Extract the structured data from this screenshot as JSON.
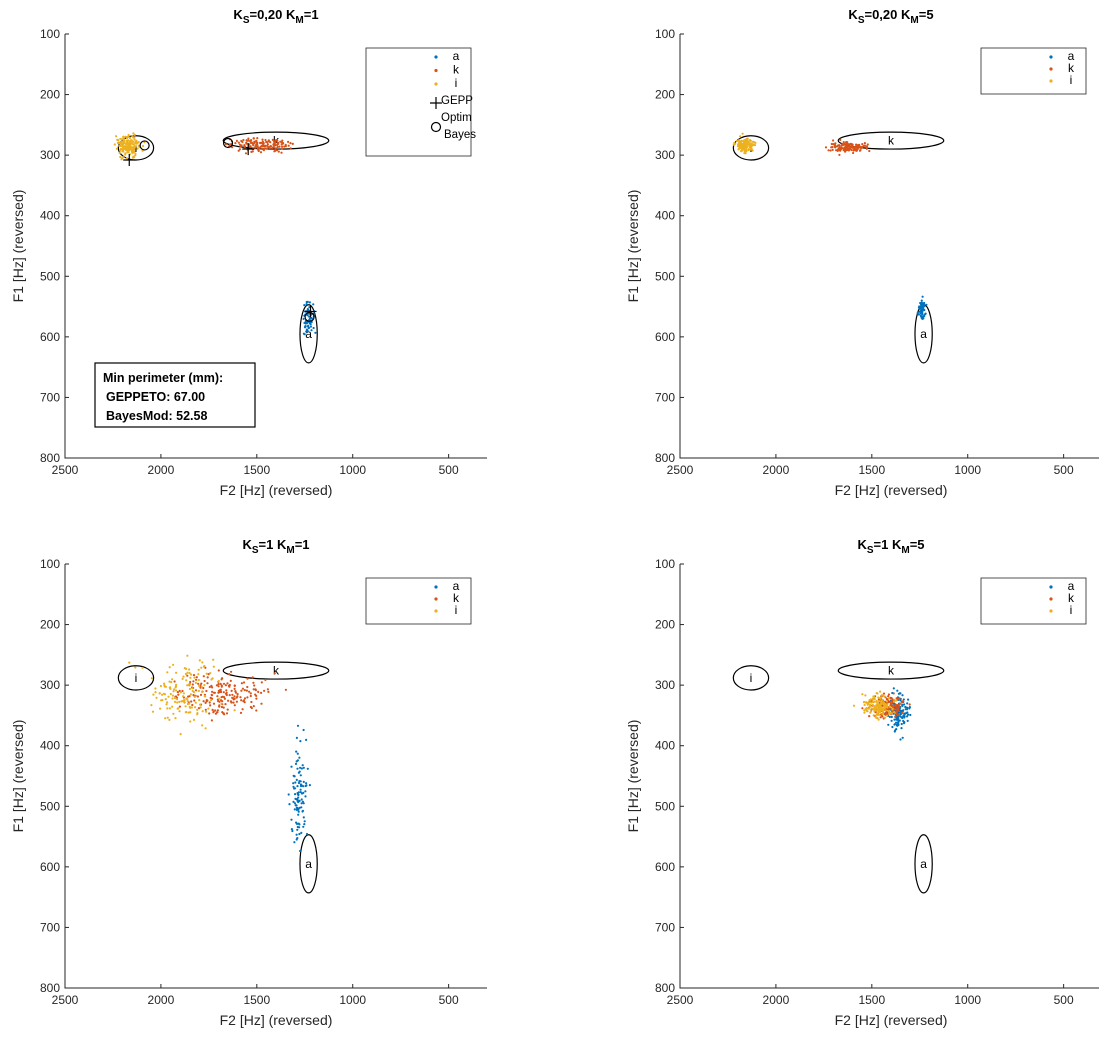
{
  "figure": {
    "colors": {
      "a": "#0072BD",
      "k": "#D95319",
      "i": "#EDB120",
      "axis": "#262626",
      "ellipse": "#000000"
    }
  },
  "chart_data": [
    {
      "type": "scatter",
      "title_parts": [
        "K",
        "S",
        "=0,20  K",
        "M",
        "=1"
      ],
      "xlabel": "F2 [Hz] (reversed)",
      "ylabel": "F1 [Hz] (reversed)",
      "xlim": [
        2500,
        300
      ],
      "ylim": [
        100,
        800
      ],
      "x_reversed": true,
      "y_reversed": true,
      "xticks": [
        2500,
        2000,
        1500,
        1000,
        500
      ],
      "yticks": [
        100,
        200,
        300,
        400,
        500,
        600,
        700,
        800
      ],
      "grid": false,
      "legend": {
        "position": "top-right",
        "entries": [
          "a",
          "k",
          "i",
          "GEPP",
          "Optim",
          "Bayes"
        ]
      },
      "targets": [
        {
          "label": "a",
          "f2": 1230,
          "f1": 595,
          "rx": 45,
          "ry": 48
        },
        {
          "label": "k",
          "f2": 1400,
          "f1": 276,
          "rx": 275,
          "ry": 14
        },
        {
          "label": "i",
          "f2": 2130,
          "f1": 288,
          "rx": 92,
          "ry": 20
        }
      ],
      "series": [
        {
          "name": "a",
          "center": [
            1228,
            570
          ],
          "spread": [
            15,
            12
          ],
          "n": 70
        },
        {
          "name": "k",
          "center": [
            1480,
            283
          ],
          "spread": [
            80,
            5
          ],
          "n": 150
        },
        {
          "name": "i",
          "center": [
            2170,
            285
          ],
          "spread": [
            30,
            8
          ],
          "n": 180
        }
      ],
      "gepp_points": [
        [
          2165,
          308
        ],
        [
          1545,
          290
        ],
        [
          1220,
          558
        ]
      ],
      "optim_bayes_points": [
        [
          2085,
          284
        ],
        [
          1650,
          280
        ],
        [
          1225,
          567
        ]
      ],
      "annotation": [
        "Min perimeter (mm):",
        "GEPPETO: 67.00",
        "BayesMod: 52.58"
      ]
    },
    {
      "type": "scatter",
      "title_parts": [
        "K",
        "S",
        "=0,20  K",
        "M",
        "=5"
      ],
      "xlabel": "F2 [Hz] (reversed)",
      "ylabel": "F1 [Hz] (reversed)",
      "xlim": [
        2500,
        300
      ],
      "ylim": [
        100,
        800
      ],
      "x_reversed": true,
      "y_reversed": true,
      "xticks": [
        2500,
        2000,
        1500,
        1000,
        500
      ],
      "yticks": [
        100,
        200,
        300,
        400,
        500,
        600,
        700,
        800
      ],
      "grid": false,
      "legend": {
        "position": "top-right",
        "entries": [
          "a",
          "k",
          "i"
        ]
      },
      "targets": [
        {
          "label": "a",
          "f2": 1230,
          "f1": 595,
          "rx": 45,
          "ry": 48
        },
        {
          "label": "k",
          "f2": 1400,
          "f1": 276,
          "rx": 275,
          "ry": 14
        },
        {
          "label": "i",
          "f2": 2130,
          "f1": 288,
          "rx": 92,
          "ry": 20
        }
      ],
      "series": [
        {
          "name": "a",
          "center": [
            1240,
            553
          ],
          "spread": [
            8,
            8
          ],
          "n": 60
        },
        {
          "name": "k",
          "center": [
            1620,
            287
          ],
          "spread": [
            45,
            4
          ],
          "n": 140
        },
        {
          "name": "i",
          "center": [
            2165,
            283
          ],
          "spread": [
            25,
            6
          ],
          "n": 160
        }
      ]
    },
    {
      "type": "scatter",
      "title_parts": [
        "K",
        "S",
        "=1  K",
        "M",
        "=1"
      ],
      "xlabel": "F2 [Hz] (reversed)",
      "ylabel": "F1 [Hz] (reversed)",
      "xlim": [
        2500,
        300
      ],
      "ylim": [
        100,
        800
      ],
      "x_reversed": true,
      "y_reversed": true,
      "xticks": [
        2500,
        2000,
        1500,
        1000,
        500
      ],
      "yticks": [
        100,
        200,
        300,
        400,
        500,
        600,
        700,
        800
      ],
      "grid": false,
      "legend": {
        "position": "top-right",
        "entries": [
          "a",
          "k",
          "i"
        ]
      },
      "targets": [
        {
          "label": "a",
          "f2": 1230,
          "f1": 595,
          "rx": 45,
          "ry": 48
        },
        {
          "label": "k",
          "f2": 1400,
          "f1": 276,
          "rx": 275,
          "ry": 14
        },
        {
          "label": "i",
          "f2": 2130,
          "f1": 288,
          "rx": 92,
          "ry": 20
        }
      ],
      "series": [
        {
          "name": "a",
          "center": [
            1280,
            480
          ],
          "spread": [
            20,
            40
          ],
          "n": 110
        },
        {
          "name": "k",
          "center": [
            1680,
            315
          ],
          "spread": [
            120,
            18
          ],
          "n": 200
        },
        {
          "name": "i",
          "center": [
            1880,
            315
          ],
          "spread": [
            90,
            25
          ],
          "n": 150
        }
      ]
    },
    {
      "type": "scatter",
      "title_parts": [
        "K",
        "S",
        "=1  K",
        "M",
        "=5"
      ],
      "xlabel": "F2 [Hz] (reversed)",
      "ylabel": "F1 [Hz] (reversed)",
      "xlim": [
        2500,
        300
      ],
      "ylim": [
        100,
        800
      ],
      "x_reversed": true,
      "y_reversed": true,
      "xticks": [
        2500,
        2000,
        1500,
        1000,
        500
      ],
      "yticks": [
        100,
        200,
        300,
        400,
        500,
        600,
        700,
        800
      ],
      "grid": false,
      "legend": {
        "position": "top-right",
        "entries": [
          "a",
          "k",
          "i"
        ]
      },
      "targets": [
        {
          "label": "a",
          "f2": 1230,
          "f1": 595,
          "rx": 45,
          "ry": 48
        },
        {
          "label": "k",
          "f2": 1400,
          "f1": 276,
          "rx": 275,
          "ry": 14
        },
        {
          "label": "i",
          "f2": 2130,
          "f1": 288,
          "rx": 92,
          "ry": 20
        }
      ],
      "series": [
        {
          "name": "a",
          "center": [
            1360,
            345
          ],
          "spread": [
            25,
            14
          ],
          "n": 150
        },
        {
          "name": "k",
          "center": [
            1420,
            335
          ],
          "spread": [
            40,
            10
          ],
          "n": 150
        },
        {
          "name": "i",
          "center": [
            1470,
            333
          ],
          "spread": [
            40,
            9
          ],
          "n": 150
        }
      ]
    }
  ]
}
